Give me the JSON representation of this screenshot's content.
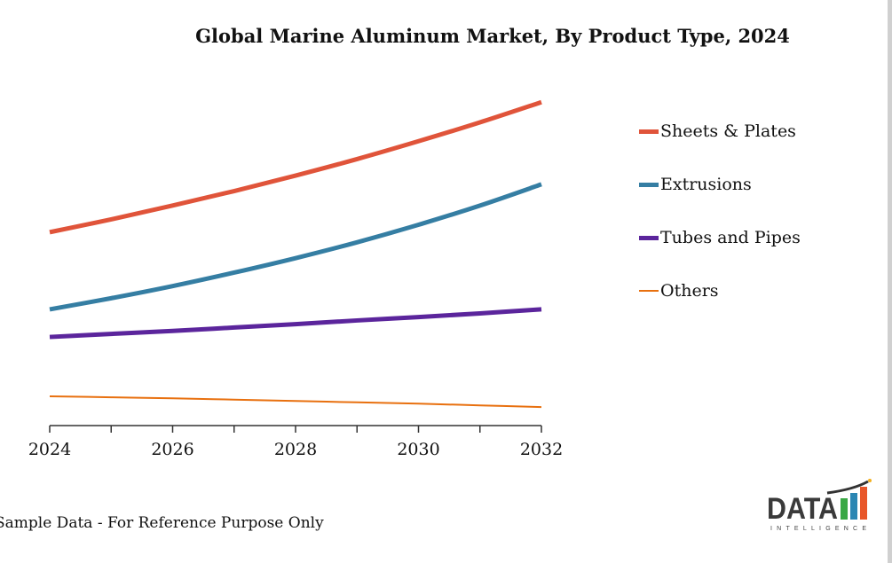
{
  "chart_data": {
    "type": "line",
    "title": "Global Marine Aluminum Market, By Product Type, 2024",
    "x": [
      2024,
      2025,
      2026,
      2027,
      2028,
      2029,
      2030,
      2031,
      2032
    ],
    "xticks": [
      "2024",
      "2026",
      "2028",
      "2030",
      "2032"
    ],
    "ylim": [
      0,
      100
    ],
    "grid": false,
    "legend_placement": "right",
    "series": [
      {
        "name": "Sheets & Plates",
        "color": "#e0543a",
        "values": [
          57.4,
          61.2,
          65.3,
          69.6,
          74.2,
          79.1,
          84.4,
          90.0,
          96.0
        ]
      },
      {
        "name": "Extrusions",
        "color": "#357ea3",
        "values": [
          34.5,
          37.8,
          41.4,
          45.4,
          49.7,
          54.4,
          59.6,
          65.3,
          71.6
        ]
      },
      {
        "name": "Tubes and Pipes",
        "color": "#5b259c",
        "values": [
          26.3,
          27.2,
          28.1,
          29.1,
          30.1,
          31.2,
          32.2,
          33.3,
          34.5
        ]
      },
      {
        "name": "Others",
        "color": "#e8700f",
        "values": [
          8.7,
          8.4,
          8.1,
          7.7,
          7.3,
          6.9,
          6.5,
          6.0,
          5.5
        ]
      }
    ]
  },
  "footer_note": "Sample Data - For Reference Purpose Only",
  "logo": {
    "text": "DATA",
    "subtext": "INTELLIGENCE"
  }
}
